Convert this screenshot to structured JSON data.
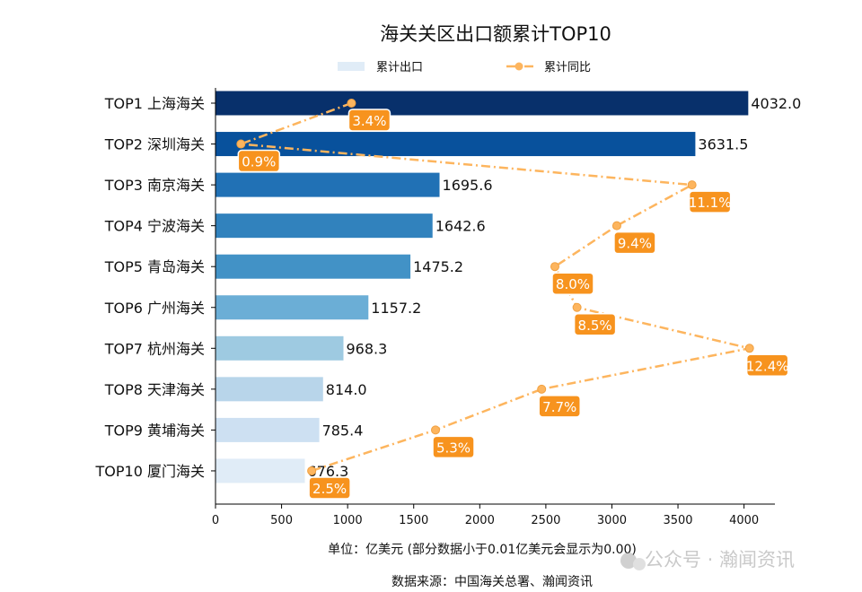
{
  "chart_data": {
    "type": "bar",
    "orientation": "horizontal",
    "title": "海关关区出口额累计TOP10",
    "categories": [
      "TOP1 上海海关",
      "TOP2 深圳海关",
      "TOP3 南京海关",
      "TOP4 宁波海关",
      "TOP5 青岛海关",
      "TOP6 广州海关",
      "TOP7 杭州海关",
      "TOP8 天津海关",
      "TOP9 黄埔海关",
      "TOP10 厦门海关"
    ],
    "series": [
      {
        "name": "累计出口",
        "type": "bar",
        "values": [
          4032.0,
          3631.5,
          1695.6,
          1642.6,
          1475.2,
          1157.2,
          968.3,
          814.0,
          785.4,
          676.3
        ],
        "colors": [
          "#08306b",
          "#08519c",
          "#2171b5",
          "#3182bd",
          "#4292c6",
          "#6baed6",
          "#9ecae1",
          "#b8d5ea",
          "#cde0f2",
          "#e0ecf7"
        ]
      },
      {
        "name": "累计同比",
        "type": "line",
        "values": [
          3.4,
          0.9,
          11.1,
          9.4,
          8.0,
          8.5,
          12.4,
          7.7,
          5.3,
          2.5
        ],
        "unit": "%",
        "color": "#fdb55e",
        "label_color": "#f7931e",
        "style": "dash-dot",
        "axis": "secondary-hidden",
        "xlim": [
          0.325,
          12.975
        ]
      }
    ],
    "xlim": [
      0,
      4233.6
    ],
    "xticks": [
      "0",
      "500",
      "1000",
      "1500",
      "2000",
      "2500",
      "3000",
      "3500",
      "4000"
    ],
    "xlabel": "单位：亿美元   (部分数据小于0.01亿美元会显示为0.00)",
    "legend": "top-center",
    "grid": false
  },
  "source": "数据来源：中国海关总署、瀚闻资讯",
  "watermark": "公众号 · 瀚闻资讯"
}
